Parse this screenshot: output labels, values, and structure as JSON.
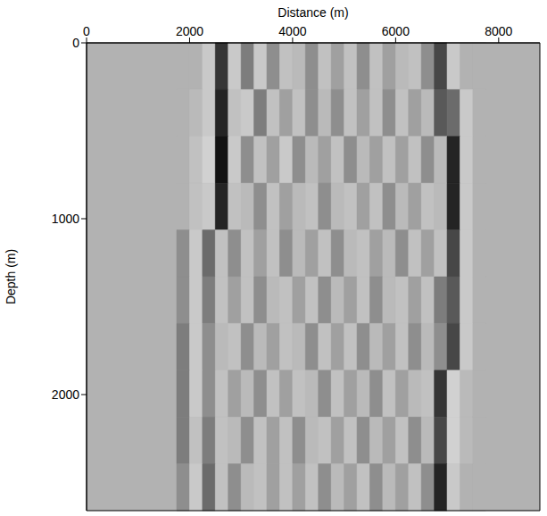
{
  "chart_data": {
    "type": "heatmap",
    "x_label": "Distance (m)",
    "y_label": "Depth (m)",
    "xlim": [
      0,
      8800
    ],
    "ylim": [
      0,
      2660
    ],
    "xticks": [
      0,
      2000,
      4000,
      6000,
      8000
    ],
    "yticks": [
      0,
      1000,
      2000
    ],
    "grid": false,
    "value_range": [
      -1,
      1
    ],
    "x_edges": [
      1750,
      2000,
      2250,
      2500,
      2750,
      3000,
      3250,
      3500,
      3750,
      4000,
      4250,
      4500,
      4750,
      5000,
      5250,
      5500,
      5750,
      6000,
      6250,
      6500,
      6750,
      7000,
      7250,
      7500,
      7750
    ],
    "y_edges": [
      0,
      266,
      532,
      798,
      1064,
      1330,
      1596,
      1862,
      2128,
      2394,
      2660
    ],
    "values": [
      [
        0,
        0,
        0.3,
        -0.7,
        0.3,
        -0.3,
        0.3,
        -0.2,
        0.2,
        0.1,
        -0.2,
        0.2,
        -0.1,
        0.2,
        -0.2,
        0.2,
        -0.1,
        0.1,
        0.2,
        -0.2,
        -0.6,
        0.3,
        0,
        0
      ],
      [
        0,
        0.1,
        0.3,
        -0.8,
        0.2,
        0.3,
        -0.3,
        0.2,
        -0.1,
        0.2,
        -0.2,
        0.1,
        -0.2,
        0.2,
        -0.1,
        0.2,
        -0.2,
        0.2,
        -0.1,
        0.1,
        -0.5,
        -0.4,
        0.3,
        0
      ],
      [
        0,
        0.2,
        0.4,
        -0.9,
        0.3,
        -0.2,
        0.2,
        -0.1,
        0.3,
        -0.2,
        0.1,
        -0.1,
        0.2,
        -0.2,
        0.1,
        -0.1,
        0.2,
        -0.1,
        0.2,
        -0.2,
        0.1,
        -0.8,
        0.3,
        0
      ],
      [
        0,
        0.2,
        0.3,
        -0.8,
        0.2,
        0.1,
        -0.2,
        0.2,
        -0.1,
        0.1,
        0.2,
        -0.2,
        0.1,
        0.2,
        -0.1,
        0.2,
        -0.2,
        0.1,
        -0.1,
        0.2,
        0.1,
        -0.8,
        0.3,
        0
      ],
      [
        -0.2,
        0.3,
        -0.4,
        0.2,
        -0.2,
        0.2,
        -0.1,
        0.2,
        -0.2,
        0.1,
        -0.1,
        0.2,
        -0.2,
        0.1,
        0.2,
        -0.1,
        0.1,
        -0.2,
        0.2,
        -0.1,
        0.2,
        -0.6,
        0.3,
        0
      ],
      [
        -0.2,
        0.3,
        -0.3,
        0.2,
        -0.1,
        0.2,
        -0.2,
        0.1,
        0.2,
        -0.1,
        0.2,
        -0.2,
        0.1,
        -0.1,
        0.2,
        -0.2,
        0.1,
        0.2,
        -0.1,
        0.2,
        -0.3,
        -0.5,
        0.3,
        0
      ],
      [
        -0.3,
        0.3,
        -0.2,
        0.1,
        0.2,
        -0.2,
        0.1,
        -0.1,
        0.2,
        0.1,
        -0.2,
        0.2,
        -0.1,
        0.2,
        -0.2,
        0.1,
        -0.1,
        0.2,
        -0.2,
        0.1,
        -0.2,
        -0.6,
        0.3,
        0
      ],
      [
        -0.3,
        0.3,
        -0.2,
        0.2,
        -0.1,
        0.1,
        -0.2,
        0.2,
        -0.1,
        0.2,
        0.1,
        -0.2,
        0.2,
        -0.1,
        0.1,
        -0.2,
        0.2,
        -0.1,
        0.1,
        0.2,
        -0.7,
        0.4,
        0.1,
        0
      ],
      [
        -0.3,
        0.2,
        -0.3,
        0.2,
        0.1,
        -0.2,
        0.2,
        -0.1,
        0.2,
        -0.2,
        0.1,
        0.2,
        -0.1,
        0.2,
        -0.2,
        0.1,
        -0.1,
        0.2,
        -0.2,
        0.1,
        -0.6,
        0.4,
        0.1,
        0
      ],
      [
        -0.2,
        0.3,
        -0.4,
        0.2,
        -0.2,
        0.1,
        0.2,
        -0.1,
        0.2,
        -0.1,
        0.2,
        -0.2,
        0.1,
        -0.1,
        0.2,
        -0.2,
        0.1,
        -0.1,
        0.2,
        -0.2,
        -0.8,
        0.3,
        0,
        0
      ]
    ]
  }
}
